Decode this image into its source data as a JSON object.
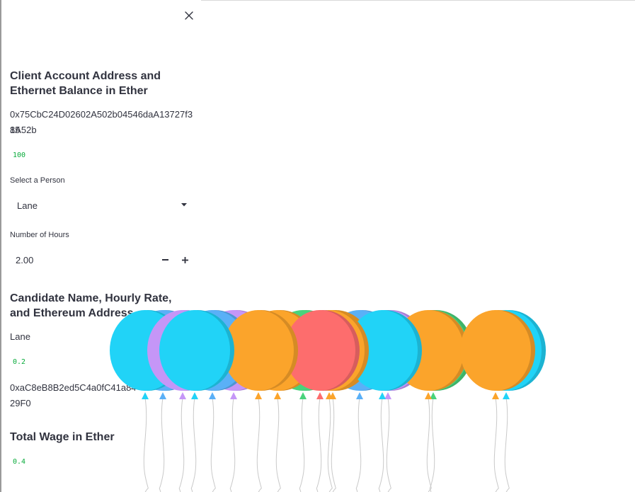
{
  "sidebar": {
    "close_icon": "close-icon",
    "account_heading": "Client Account Address and Ethernet Balance in Ether",
    "account_address_line1": "0x75CbC24D02602A502b04546daA13727f385",
    "account_address_line2": "1A52b",
    "balance": "100",
    "person_select": {
      "label": "Select a Person",
      "value": "Lane",
      "icon": "chevron-down-icon"
    },
    "hours_input": {
      "label": "Number of Hours",
      "value": "2.00",
      "minus_label": "−",
      "plus_label": "+"
    },
    "candidate_heading": "Candidate Name, Hourly Rate, and Ethereum Address",
    "candidate_name": "Lane",
    "hourly_rate": "0.2",
    "candidate_address_line1": "0xaC8eB8B2ed5C4a0fC41a84",
    "candidate_address_line2": "29F0",
    "wage_heading": "Total Wage in Ether",
    "total_wage": "0.4"
  },
  "balloon_colors": {
    "blue": "#21d3f7",
    "light_blue": "#5ab0f7",
    "purple": "#c596f7",
    "orange": "#fba42b",
    "red": "#fd6d6d",
    "green": "#49d37c"
  }
}
